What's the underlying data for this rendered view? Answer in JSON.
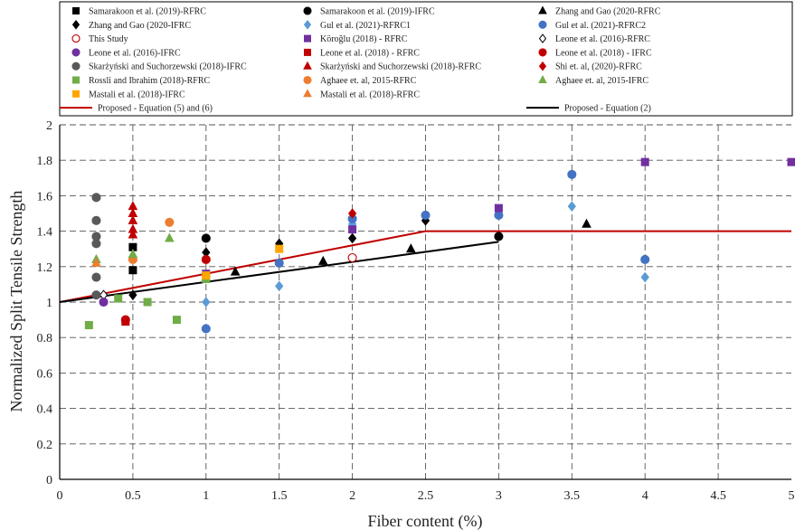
{
  "chart_data": {
    "type": "scatter",
    "title": "",
    "xlabel": "Fiber content (%)",
    "ylabel": "Normalized Split Tensile Strength",
    "xlim": [
      0,
      5
    ],
    "ylim": [
      0,
      2
    ],
    "grid": true,
    "legend_position": "top",
    "x_ticks": [
      "0",
      "0.5",
      "1",
      "1.5",
      "2",
      "2.5",
      "3",
      "3.5",
      "4",
      "4.5",
      "5"
    ],
    "y_ticks": [
      "0",
      "0.2",
      "0.4",
      "0.6",
      "0.8",
      "1",
      "1.2",
      "1.4",
      "1.6",
      "1.8",
      "2"
    ],
    "series": [
      {
        "name": "Samarakoon et al. (2019)-RFRC",
        "marker": "square",
        "color": "#000000",
        "filled": true,
        "points": [
          [
            0.5,
            1.18
          ],
          [
            0.5,
            1.31
          ]
        ]
      },
      {
        "name": "Samarakoon et al. (2019)-IFRC",
        "marker": "circle",
        "color": "#000000",
        "filled": true,
        "points": [
          [
            1.0,
            1.36
          ],
          [
            3.0,
            1.37
          ]
        ]
      },
      {
        "name": "Zhang and Gao (2020-RFRC",
        "marker": "triangle",
        "color": "#000000",
        "filled": true,
        "points": [
          [
            1.2,
            1.17
          ],
          [
            1.8,
            1.23
          ],
          [
            2.4,
            1.3
          ],
          [
            3.6,
            1.44
          ]
        ]
      },
      {
        "name": "Zhang and Gao (2020-IFRC",
        "marker": "diamond",
        "color": "#000000",
        "filled": true,
        "points": [
          [
            0.5,
            1.04
          ],
          [
            1.0,
            1.28
          ],
          [
            1.5,
            1.33
          ],
          [
            2.0,
            1.36
          ],
          [
            2.5,
            1.46
          ]
        ]
      },
      {
        "name": "Gul et al. (2021)-RFRC1",
        "marker": "diamond",
        "color": "#5b9bd5",
        "filled": true,
        "points": [
          [
            1.0,
            1.0
          ],
          [
            1.5,
            1.09
          ],
          [
            2.0,
            1.44
          ],
          [
            3.0,
            1.52
          ],
          [
            3.5,
            1.54
          ],
          [
            4.0,
            1.14
          ]
        ]
      },
      {
        "name": "Gul et al. (2021)-RFRC2",
        "marker": "circle",
        "color": "#4472c4",
        "filled": true,
        "points": [
          [
            1.0,
            0.85
          ],
          [
            1.5,
            1.22
          ],
          [
            2.0,
            1.47
          ],
          [
            2.5,
            1.49
          ],
          [
            3.0,
            1.49
          ],
          [
            3.5,
            1.72
          ],
          [
            4.0,
            1.24
          ]
        ]
      },
      {
        "name": "This Study",
        "marker": "circle",
        "color": "#c00000",
        "filled": false,
        "points": [
          [
            2.0,
            1.25
          ]
        ]
      },
      {
        "name": "Köroğlu (2018) - RFRC",
        "marker": "square",
        "color": "#7030a0",
        "filled": true,
        "points": [
          [
            1.0,
            1.16
          ],
          [
            2.0,
            1.41
          ],
          [
            3.0,
            1.53
          ],
          [
            4.0,
            1.79
          ],
          [
            5.0,
            1.79
          ]
        ]
      },
      {
        "name": "Leone et al. (2016)-RFRC",
        "marker": "diamond",
        "color": "#000000",
        "filled": false,
        "points": [
          [
            0.3,
            1.04
          ]
        ]
      },
      {
        "name": "Leone et al. (2016)-IFRC",
        "marker": "circle",
        "color": "#7030a0",
        "filled": true,
        "points": [
          [
            0.3,
            1.0
          ]
        ]
      },
      {
        "name": "Leone et al. (2018) - RFRC",
        "marker": "square",
        "color": "#c00000",
        "filled": true,
        "points": [
          [
            0.45,
            0.89
          ]
        ]
      },
      {
        "name": "Leone et al. (2018) - IFRC",
        "marker": "circle",
        "color": "#c00000",
        "filled": true,
        "points": [
          [
            0.45,
            0.9
          ],
          [
            1.0,
            1.24
          ]
        ]
      },
      {
        "name": "Skarżyński and Suchorzewski (2018)-IFRC",
        "marker": "circle",
        "color": "#595959",
        "filled": true,
        "points": [
          [
            0.25,
            1.04
          ],
          [
            0.25,
            1.14
          ],
          [
            0.25,
            1.33
          ],
          [
            0.25,
            1.37
          ],
          [
            0.25,
            1.46
          ],
          [
            0.25,
            1.59
          ]
        ]
      },
      {
        "name": "Skarżyński and Suchorzewski (2018)-RFRC",
        "marker": "triangle",
        "color": "#c00000",
        "filled": true,
        "points": [
          [
            0.5,
            1.38
          ],
          [
            0.5,
            1.41
          ],
          [
            0.5,
            1.46
          ],
          [
            0.5,
            1.5
          ],
          [
            0.5,
            1.54
          ]
        ]
      },
      {
        "name": "Shi et. al, (2020)-RFRC",
        "marker": "diamond",
        "color": "#c00000",
        "filled": true,
        "points": [
          [
            2.0,
            1.5
          ]
        ]
      },
      {
        "name": "Rossli and Ibrahim (2018)-RFRC",
        "marker": "square",
        "color": "#70ad47",
        "filled": true,
        "points": [
          [
            0.2,
            0.87
          ],
          [
            0.4,
            1.02
          ],
          [
            0.6,
            1.0
          ],
          [
            0.8,
            0.9
          ],
          [
            1.0,
            1.13
          ]
        ]
      },
      {
        "name": "Aghaee et. al, 2015-RFRC",
        "marker": "circle",
        "color": "#ed7d31",
        "filled": true,
        "points": [
          [
            0.5,
            1.24
          ],
          [
            0.75,
            1.45
          ]
        ]
      },
      {
        "name": "Aghaee et. al, 2015-IFRC",
        "marker": "triangle",
        "color": "#70ad47",
        "filled": true,
        "points": [
          [
            0.25,
            1.24
          ],
          [
            0.5,
            1.27
          ],
          [
            0.75,
            1.36
          ],
          [
            1.0,
            1.14
          ]
        ]
      },
      {
        "name": "Mastali et al. (2018)-IFRC",
        "marker": "square",
        "color": "#ffa500",
        "filled": true,
        "points": [
          [
            1.0,
            1.15
          ],
          [
            1.5,
            1.3
          ]
        ]
      },
      {
        "name": "Mastali et al. (2018)-RFRC",
        "marker": "triangle",
        "color": "#ed7d31",
        "filled": true,
        "points": [
          [
            0.25,
            1.22
          ]
        ]
      }
    ],
    "lines": [
      {
        "name": "Proposed - Equation (5) and (6)",
        "color": "#c00000",
        "points": [
          [
            0,
            1.0
          ],
          [
            2.5,
            1.4
          ],
          [
            2.6,
            1.4
          ],
          [
            5.0,
            1.4
          ]
        ]
      },
      {
        "name": "Proposed - Equation (2)",
        "color": "#000000",
        "points": [
          [
            0,
            1.0
          ],
          [
            3.0,
            1.34
          ]
        ]
      }
    ]
  }
}
